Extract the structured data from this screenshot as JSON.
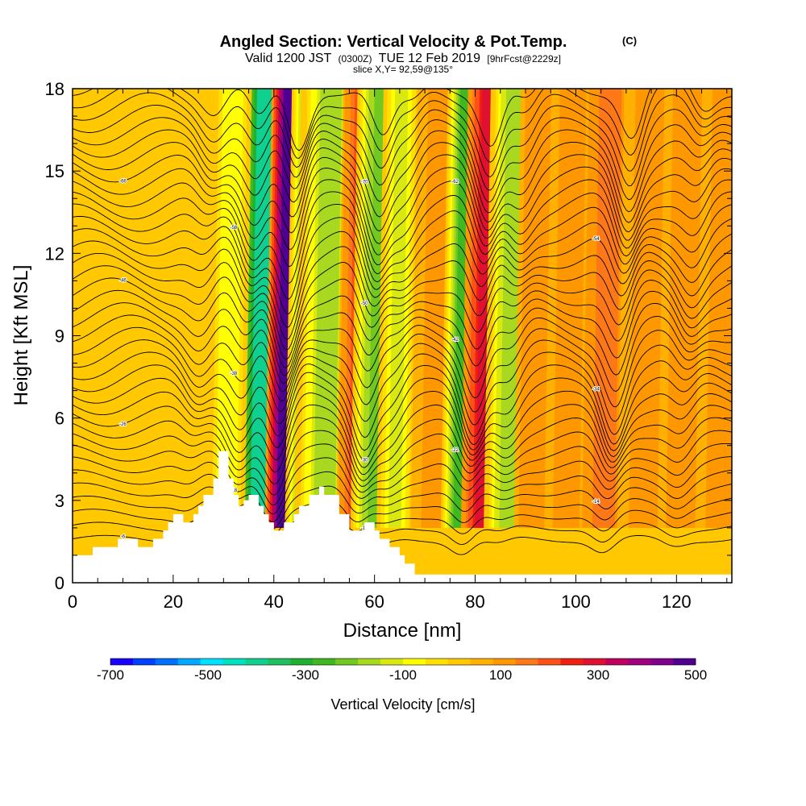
{
  "chart_data": {
    "type": "heatmap",
    "title": "Angled Section: Vertical Velocity & Pot.Temp.",
    "title_note": "(C)",
    "subtitle_valid": "Valid 1200 JST",
    "subtitle_utc": "(0300Z)",
    "subtitle_date": "TUE 12 Feb 2019",
    "subtitle_fcst": "[9hrFcst@2229z]",
    "slice_label": "slice X,Y= 92,59@135°",
    "xlabel": "Distance [nm]",
    "ylabel": "Height [Kft MSL]",
    "xlim": [
      0,
      131
    ],
    "ylim": [
      0,
      18
    ],
    "x_ticks": [
      0,
      20,
      40,
      60,
      80,
      100,
      120
    ],
    "y_ticks": [
      0,
      3,
      6,
      9,
      12,
      15,
      18
    ],
    "grid": false,
    "colorbar": {
      "title": "Vertical Velocity [cm/s]",
      "min": -700,
      "max": 500,
      "step": 50,
      "tick_values": [
        -700,
        -500,
        -300,
        -100,
        100,
        300,
        500
      ],
      "colors": [
        "#1a00ff",
        "#0040ff",
        "#0070ff",
        "#00a8ff",
        "#00e0ff",
        "#00e0c0",
        "#10d090",
        "#20c060",
        "#20b030",
        "#40b820",
        "#70c820",
        "#a8d820",
        "#d8e810",
        "#ffff00",
        "#ffe000",
        "#ffc800",
        "#ffb000",
        "#ff9800",
        "#ff7818",
        "#ff5018",
        "#f02010",
        "#e01030",
        "#c00060",
        "#a00080",
        "#80008c",
        "#500090"
      ]
    },
    "vertical_velocity_bands": [
      {
        "x": 37,
        "w": 2.0,
        "v": -380
      },
      {
        "x": 42.5,
        "w": 1.8,
        "v": 520
      },
      {
        "x": 46.5,
        "w": 1.8,
        "v": -300
      },
      {
        "x": 50,
        "w": 2.5,
        "v": -150
      },
      {
        "x": 56,
        "w": 1.5,
        "v": 180
      },
      {
        "x": 60.5,
        "w": 2.2,
        "v": -230
      },
      {
        "x": 64,
        "w": 1.5,
        "v": -120
      },
      {
        "x": 72,
        "w": 2.0,
        "v": 100
      },
      {
        "x": 77,
        "w": 1.6,
        "v": -270
      },
      {
        "x": 81.5,
        "w": 1.8,
        "v": 270
      },
      {
        "x": 86.5,
        "w": 2.0,
        "v": -170
      },
      {
        "x": 92,
        "w": 1.8,
        "v": 120
      },
      {
        "x": 99,
        "w": 2.2,
        "v": 110
      },
      {
        "x": 105.5,
        "w": 2.0,
        "v": 150
      },
      {
        "x": 113.5,
        "w": 2.2,
        "v": 100
      },
      {
        "x": 121.5,
        "w": 2.2,
        "v": 110
      },
      {
        "x": 128.5,
        "w": 2.0,
        "v": 100
      },
      {
        "x": 30.5,
        "w": 1.5,
        "v": -100
      }
    ],
    "terrain": {
      "x": [
        0,
        4,
        4,
        9,
        9,
        13,
        13,
        16,
        16,
        18,
        18,
        19,
        19,
        20,
        20,
        22,
        22,
        24,
        24,
        25,
        25,
        26,
        26,
        28,
        28,
        29,
        29,
        31,
        31,
        32,
        32,
        33,
        33,
        34,
        34,
        35,
        35,
        37,
        37,
        38,
        38,
        39,
        39,
        40,
        40,
        42,
        42,
        44,
        44,
        45,
        45,
        47,
        47,
        49,
        49,
        50,
        50,
        53,
        53,
        55,
        55,
        58,
        58,
        60,
        60,
        61,
        61,
        63,
        63,
        65,
        65,
        66,
        66,
        68,
        68,
        71,
        71,
        131
      ],
      "y": [
        1.0,
        1.0,
        1.3,
        1.3,
        1.6,
        1.6,
        1.3,
        1.3,
        1.6,
        1.6,
        1.9,
        1.9,
        2.2,
        2.2,
        2.5,
        2.5,
        2.2,
        2.2,
        2.5,
        2.5,
        2.8,
        2.8,
        3.2,
        3.2,
        3.8,
        3.8,
        4.8,
        4.8,
        3.8,
        3.8,
        3.2,
        3.2,
        2.8,
        2.8,
        3.0,
        3.0,
        3.2,
        3.2,
        2.8,
        2.8,
        2.5,
        2.5,
        2.2,
        2.2,
        1.9,
        1.9,
        2.2,
        2.2,
        2.5,
        2.5,
        2.8,
        2.8,
        3.2,
        3.2,
        3.5,
        3.5,
        3.2,
        3.2,
        2.5,
        2.5,
        1.9,
        1.9,
        2.2,
        2.2,
        1.9,
        1.9,
        1.6,
        1.6,
        1.3,
        1.3,
        1.0,
        1.0,
        0.7,
        0.7,
        0.3,
        0.3,
        0.3,
        0.3
      ]
    },
    "theta_contours": {
      "count": 38,
      "y_start": 1.6,
      "y_spacing": 0.45,
      "wave_troughs": [
        {
          "x": 24,
          "depth": 0.8
        },
        {
          "x": 33,
          "depth": 1.6
        },
        {
          "x": 40.5,
          "depth": 2.6
        },
        {
          "x": 57.5,
          "depth": 2.2
        },
        {
          "x": 63,
          "depth": 1.0
        },
        {
          "x": 79,
          "depth": 2.1
        },
        {
          "x": 86,
          "depth": 1.0
        },
        {
          "x": 107,
          "depth": 2.0
        },
        {
          "x": 121,
          "depth": 1.0
        }
      ]
    },
    "contour_labels": [
      "-6",
      "-8",
      "-10",
      "-12",
      "-14",
      "-16",
      "-18",
      "-20",
      "-22",
      "-24",
      "-26",
      "-28",
      "-30",
      "-32",
      "-34",
      "-36",
      "-38",
      "-40",
      "-42",
      "-44",
      "-46",
      "-48",
      "-50",
      "-52",
      "-54",
      "-56",
      "-58",
      "-60",
      "-62",
      "-64",
      "-66",
      "-68",
      "-70"
    ]
  }
}
